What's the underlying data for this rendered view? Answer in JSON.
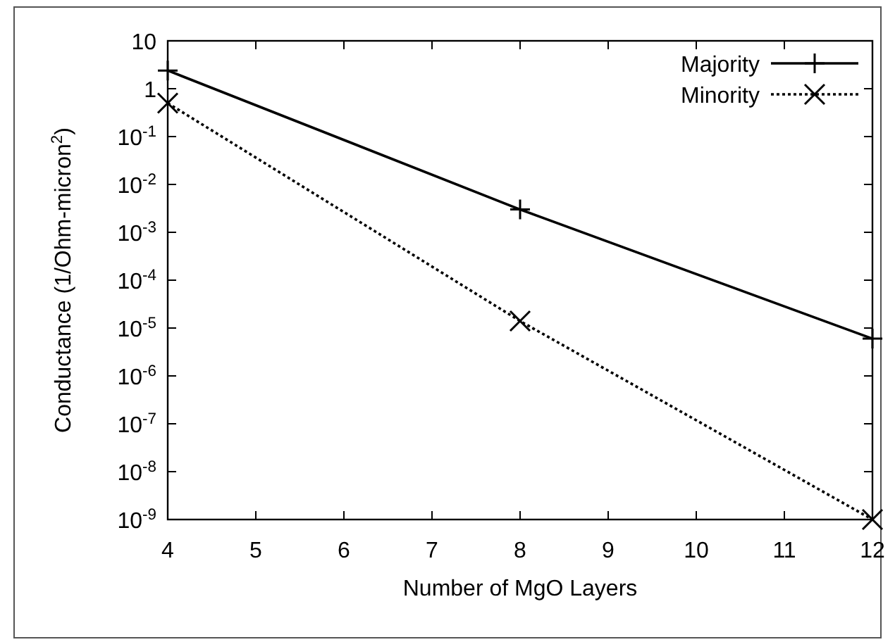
{
  "chart_data": {
    "type": "line",
    "xlabel": "Number of MgO Layers",
    "ylabel": "Conductance (1/Ohm-micron$^{2}$)",
    "x": [
      4,
      8,
      12
    ],
    "xlim": [
      4,
      12
    ],
    "xticks": [
      4,
      5,
      6,
      7,
      8,
      9,
      10,
      11,
      12
    ],
    "ylim": [
      1e-09,
      10
    ],
    "log": true,
    "yticks": [
      10,
      1,
      {
        "value": 0.1,
        "label": "10$^{-1}$"
      },
      {
        "value": 0.01,
        "label": "10$^{-2}$"
      },
      {
        "value": 0.001,
        "label": "10$^{-3}$"
      },
      {
        "value": 0.0001,
        "label": "10$^{-4}$"
      },
      {
        "value": 1e-05,
        "label": "10$^{-5}$"
      },
      {
        "value": 1e-06,
        "label": "10$^{-6}$"
      },
      {
        "value": 1e-07,
        "label": "10$^{-7}$"
      },
      {
        "value": 1e-08,
        "label": "10$^{-8}$"
      },
      {
        "value": 1e-09,
        "label": "10$^{-9}$"
      }
    ],
    "legend": "top right",
    "grid": false,
    "series": [
      {
        "name": "Majority",
        "color": "#000000",
        "values": [
          2.4,
          0.003,
          6e-06
        ],
        "marker": "plus",
        "line_style": "solid"
      },
      {
        "name": "Minority",
        "color": "#000000",
        "values": [
          0.5,
          1.4e-05,
          1e-09
        ],
        "marker": "cross",
        "line_style": "dotted"
      }
    ]
  }
}
